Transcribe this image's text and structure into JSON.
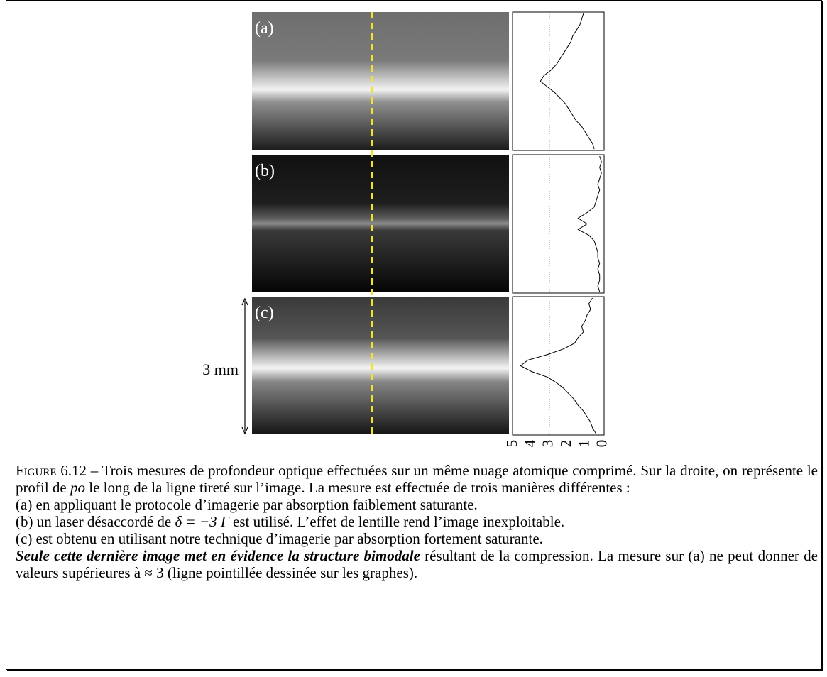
{
  "figure": {
    "panels": [
      {
        "label": "(a)",
        "profile": [
          1.1,
          1.2,
          1.3,
          1.5,
          1.7,
          1.8,
          2.0,
          2.2,
          2.4,
          2.6,
          2.9,
          3.3,
          3.5,
          3.1,
          2.7,
          2.4,
          2.1,
          1.9,
          1.7,
          1.5,
          1.2,
          1.0,
          0.8,
          0.6,
          0.5
        ]
      },
      {
        "label": "(b)",
        "profile": [
          0.2,
          0.1,
          0.2,
          0.1,
          0.2,
          0.3,
          0.2,
          0.3,
          0.4,
          0.5,
          0.9,
          1.4,
          0.9,
          1.4,
          0.8,
          0.5,
          0.4,
          0.3,
          0.3,
          0.2,
          0.3,
          0.2,
          0.2,
          0.3,
          0.2
        ]
      },
      {
        "label": "(c)",
        "profile": [
          0.6,
          0.8,
          0.7,
          0.9,
          1.0,
          1.2,
          1.1,
          1.4,
          1.6,
          2.2,
          3.1,
          4.2,
          4.6,
          4.0,
          3.1,
          2.6,
          2.2,
          1.9,
          1.6,
          1.4,
          1.1,
          0.9,
          0.7,
          0.6,
          0.4
        ]
      }
    ],
    "scale_bar": "3 mm",
    "profile_axis": {
      "xlim": [
        5.05,
        -0.05
      ],
      "xticks": [
        5,
        4,
        3,
        2,
        1,
        0
      ],
      "threshold": 3
    }
  },
  "caption": {
    "label": "Figure 6.12 –",
    "intro": [
      "Trois mesures de profondeur optique effectuées sur un même nuage atomique comprimé. Sur la droite, on représente le profil de ",
      "po",
      " le long de la ligne tireté sur l’image. La mesure est effectuée de trois manières différentes :"
    ],
    "item_a": "(a) en appliquant le protocole d’imagerie par absorption faiblement saturante.",
    "item_b": [
      "(b) un laser désaccordé de ",
      "δ = −3 Γ",
      " est utilisé. L’effet de lentille rend l’image inexploitable."
    ],
    "item_c": "(c) est obtenu en utilisant notre technique d’imagerie par absorption fortement saturante.",
    "conclusion": [
      "Seule cette dernière image met en évidence la structure bimodale",
      " résultant de la compression. La mesure sur (a) ne peut donner de valeurs supérieures à ",
      "≈ 3",
      " (ligne pointillée dessinée sur les graphes)."
    ]
  }
}
